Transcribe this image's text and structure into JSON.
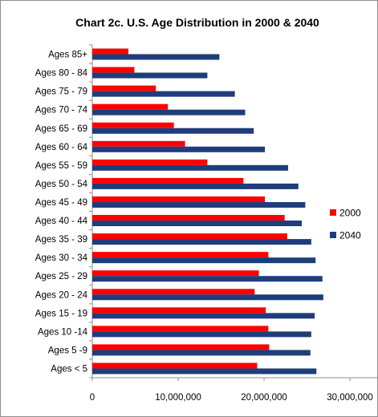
{
  "chart_data": {
    "type": "bar",
    "orientation": "horizontal",
    "title": "Chart 2c. U.S. Age Distribution in 2000 & 2040",
    "xlabel": "",
    "ylabel": "",
    "xlim": [
      0,
      35000000
    ],
    "x_ticks": [
      0,
      10000000,
      20000000,
      30000000
    ],
    "x_tick_labels": [
      "0",
      "10,000,000",
      "20,000,000",
      "30,000,000"
    ],
    "grid": false,
    "legend_position": "right",
    "categories": [
      "Ages < 5",
      "Ages 5 -9",
      "Ages 10 -14",
      "Ages 15 - 19",
      "Ages 20 - 24",
      "Ages 25 - 29",
      "Ages 30 - 34",
      "Ages 35 - 39",
      "Ages 40 - 44",
      "Ages 45 - 49",
      "Ages 50 - 54",
      "Ages 55 - 59",
      "Ages 60 - 64",
      "Ages 65 - 69",
      "Ages 70 - 74",
      "Ages 75 - 79",
      "Ages 80 - 84",
      "Ages 85+"
    ],
    "series": [
      {
        "name": "2000",
        "color": "#ff0000",
        "values": [
          19200000,
          20600000,
          20500000,
          20200000,
          18900000,
          19400000,
          20500000,
          22700000,
          22400000,
          20100000,
          17600000,
          13400000,
          10800000,
          9500000,
          8800000,
          7400000,
          4900000,
          4200000
        ]
      },
      {
        "name": "2040",
        "color": "#1f3d7a",
        "values": [
          26100000,
          25400000,
          25500000,
          25900000,
          26900000,
          26800000,
          26000000,
          25500000,
          24400000,
          24800000,
          24000000,
          22800000,
          20100000,
          18800000,
          17800000,
          16600000,
          13400000,
          14800000
        ]
      }
    ]
  }
}
